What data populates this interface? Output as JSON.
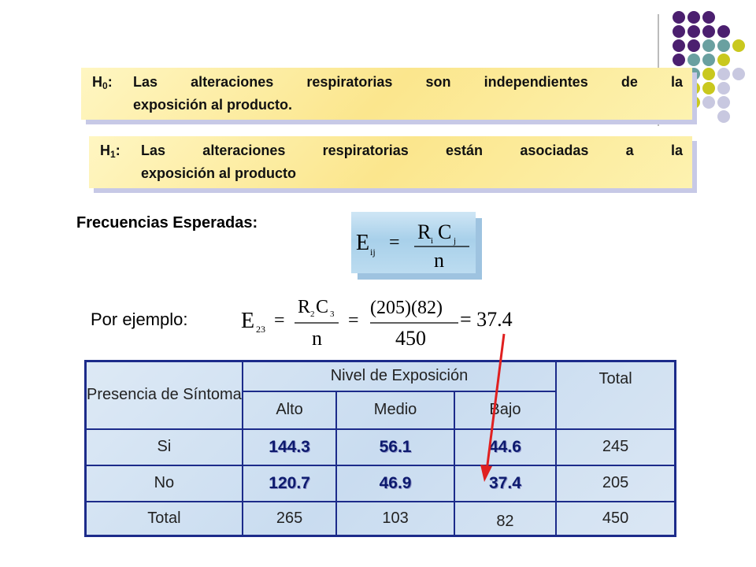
{
  "hypotheses": {
    "h0": {
      "label": "H",
      "sub": "0",
      "colon": ":",
      "line1": "Las alteraciones respiratorias son  independientes de la",
      "line2": "exposición al producto."
    },
    "h1": {
      "label": "H",
      "sub": "1",
      "colon": ":",
      "line1": "Las alteraciones respiratorias están asociadas a la",
      "line2": "exposición al producto"
    }
  },
  "expected": {
    "title": "Frecuencias Esperadas:",
    "formula": {
      "lhs": "E",
      "lhs_sub": "ij",
      "num_r": "R",
      "num_r_sub": "i",
      "num_c": "C",
      "num_c_sub": "j",
      "den": "n"
    }
  },
  "example": {
    "label": "Por ejemplo:",
    "lhs": "E",
    "lhs_sub": "23",
    "f1_num_r": "R",
    "f1_num_r_sub": "2",
    "f1_num_c": "C",
    "f1_num_c_sub": "3",
    "f1_den": "n",
    "f2_num": "(205)(82)",
    "f2_den": "450",
    "result": "= 37.4"
  },
  "table": {
    "header_symptom": "Presencia de Síntoma",
    "header_level": "Nivel de Exposición",
    "header_total": "Total",
    "sub_headers": [
      "Alto",
      "Medio",
      "Bajo"
    ],
    "rows": [
      {
        "label": "Si",
        "values": [
          "144.3",
          "56.1",
          "44.6"
        ],
        "total": "245"
      },
      {
        "label": "No",
        "values": [
          "120.7",
          "46.9",
          "37.4"
        ],
        "total": "205"
      }
    ],
    "totals_row": {
      "label": "Total",
      "values": [
        "265",
        "103",
        "82"
      ],
      "total": "450"
    }
  },
  "colors": {
    "dot_purple": "#4b1f6f",
    "dot_teal": "#6aa0a0",
    "dot_olive": "#c9c81e",
    "dot_lavender": "#c8c8e0",
    "table_border": "#1c2b8a",
    "arrow": "#e02020"
  }
}
